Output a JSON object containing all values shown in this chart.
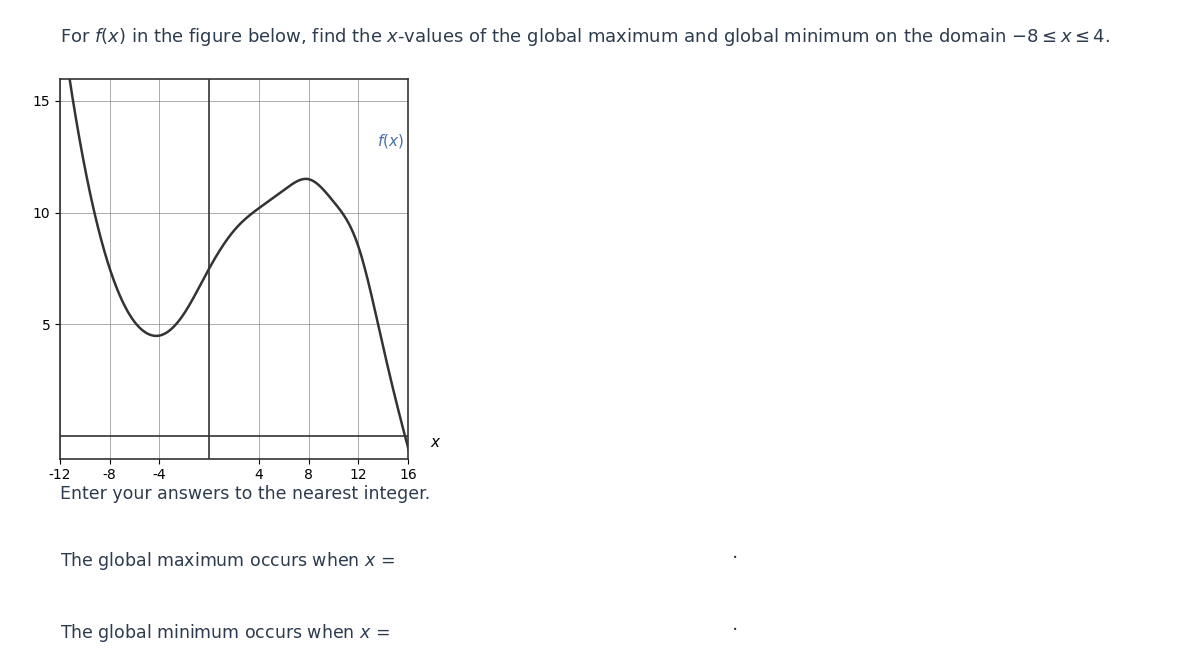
{
  "title": "For $f(x)$ in the figure below, find the $x$-values of the global maximum and global minimum on the domain – 8 ≤ x ≤ 4.",
  "fx_label": "$f(x)$",
  "x_axis_label": "$x$",
  "yticks": [
    5,
    10,
    15
  ],
  "xticks": [
    -12,
    -8,
    -4,
    4,
    8,
    12,
    16
  ],
  "xlim": [
    -14,
    18
  ],
  "ylim": [
    -1,
    17
  ],
  "graph_xlim": [
    -12,
    16
  ],
  "graph_ylim": [
    0,
    15
  ],
  "line_color": "#333333",
  "grid_color": "#888888",
  "background_color": "#ffffff",
  "text_color": "#2d3b4e",
  "text1": "Enter your answers to the nearest integer.",
  "text2": "The global maximum occurs when $x$ = ",
  "text3": "The global minimum occurs when $x$ = ",
  "input_box_color": "#ffffff",
  "input_border_color": "#aaaaaa",
  "info_button_color": "#3399dd",
  "period": 14,
  "amplitude": 3.5,
  "shift_y": 7.5,
  "curve_x_start": -12,
  "curve_x_end": 17
}
